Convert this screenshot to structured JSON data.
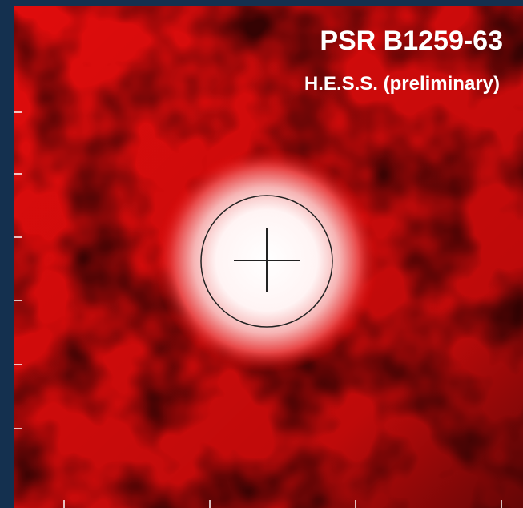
{
  "title": "PSR B1259-63",
  "subtitle": "H.E.S.S. (preliminary)"
}
